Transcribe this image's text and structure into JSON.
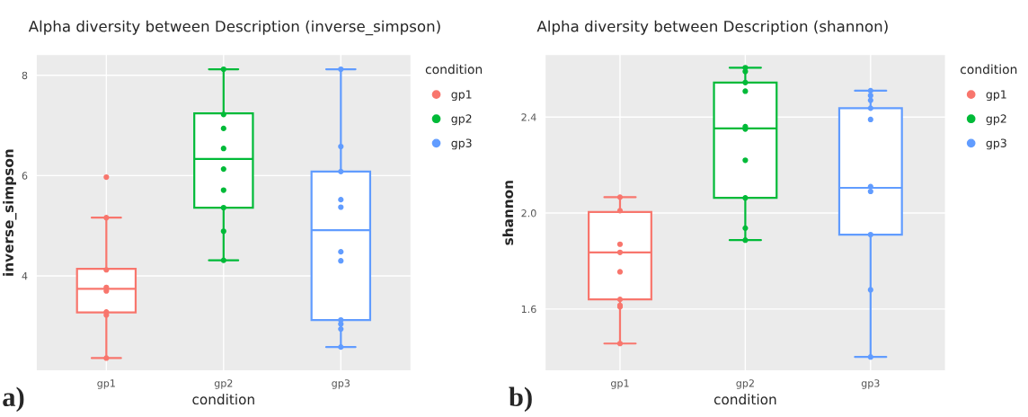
{
  "chart_data": [
    {
      "type": "box",
      "title": "Alpha diversity between Description (inverse_simpson)",
      "xlabel": "condition",
      "ylabel": "inverse_simpson",
      "legend_title": "condition",
      "annotations": [
        "a)"
      ],
      "categories": [
        "gp1",
        "gp2",
        "gp3"
      ],
      "colors": [
        "#f8766d",
        "#00ba38",
        "#619cff"
      ],
      "boxes": [
        {
          "low": 2.36,
          "q1": 3.27,
          "median": 3.74,
          "q3": 4.14,
          "high": 5.16
        },
        {
          "low": 4.31,
          "q1": 5.36,
          "median": 6.33,
          "q3": 7.24,
          "high": 8.12
        },
        {
          "low": 2.58,
          "q1": 3.12,
          "median": 4.91,
          "q3": 6.08,
          "high": 8.12
        }
      ],
      "series": [
        {
          "type": "scatter",
          "name": "gp1",
          "color": "#f8766d",
          "x": [
            "gp1",
            "gp1",
            "gp1",
            "gp1",
            "gp1",
            "gp1",
            "gp1",
            "gp1"
          ],
          "values": [
            2.36,
            3.28,
            3.22,
            3.77,
            3.7,
            4.12,
            5.16,
            5.97
          ]
        },
        {
          "type": "scatter",
          "name": "gp2",
          "color": "#00ba38",
          "x": [
            "gp2",
            "gp2",
            "gp2",
            "gp2",
            "gp2",
            "gp2",
            "gp2",
            "gp2",
            "gp2"
          ],
          "values": [
            4.31,
            4.89,
            5.36,
            5.71,
            6.13,
            6.54,
            6.94,
            7.22,
            8.12
          ]
        },
        {
          "type": "scatter",
          "name": "gp3",
          "color": "#619cff",
          "x": [
            "gp3",
            "gp3",
            "gp3",
            "gp3",
            "gp3",
            "gp3",
            "gp3",
            "gp3",
            "gp3",
            "gp3",
            "gp3"
          ],
          "values": [
            2.58,
            2.94,
            3.04,
            3.12,
            4.3,
            4.48,
            5.37,
            5.52,
            6.08,
            6.58,
            8.12
          ]
        }
      ],
      "ylim": [
        2.1,
        8.42
      ],
      "yticks": [
        4,
        6,
        8
      ],
      "grid": true,
      "legend": "right",
      "marker": "circle"
    },
    {
      "type": "box",
      "title": "Alpha diversity between Description (shannon)",
      "xlabel": "condition",
      "ylabel": "shannon",
      "legend_title": "condition",
      "annotations": [
        "b)"
      ],
      "categories": [
        "gp1",
        "gp2",
        "gp3"
      ],
      "colors": [
        "#f8766d",
        "#00ba38",
        "#619cff"
      ],
      "boxes": [
        {
          "low": 1.456,
          "q1": 1.64,
          "median": 1.836,
          "q3": 2.004,
          "high": 2.066
        },
        {
          "low": 1.887,
          "q1": 2.063,
          "median": 2.353,
          "q3": 2.544,
          "high": 2.606
        },
        {
          "low": 1.4,
          "q1": 1.91,
          "median": 2.105,
          "q3": 2.437,
          "high": 2.51
        }
      ],
      "series": [
        {
          "type": "scatter",
          "name": "gp1",
          "color": "#f8766d",
          "x": [
            "gp1",
            "gp1",
            "gp1",
            "gp1",
            "gp1",
            "gp1",
            "gp1",
            "gp1",
            "gp1"
          ],
          "values": [
            1.456,
            1.609,
            1.615,
            1.64,
            1.755,
            1.836,
            1.87,
            2.01,
            2.066
          ]
        },
        {
          "type": "scatter",
          "name": "gp2",
          "color": "#00ba38",
          "x": [
            "gp2",
            "gp2",
            "gp2",
            "gp2",
            "gp2",
            "gp2",
            "gp2",
            "gp2",
            "gp2",
            "gp2"
          ],
          "values": [
            1.887,
            1.937,
            2.063,
            2.22,
            2.35,
            2.36,
            2.508,
            2.544,
            2.59,
            2.606
          ]
        },
        {
          "type": "scatter",
          "name": "gp3",
          "color": "#619cff",
          "x": [
            "gp3",
            "gp3",
            "gp3",
            "gp3",
            "gp3",
            "gp3",
            "gp3",
            "gp3",
            "gp3",
            "gp3"
          ],
          "values": [
            1.4,
            1.68,
            1.91,
            2.09,
            2.11,
            2.39,
            2.437,
            2.47,
            2.49,
            2.51
          ]
        }
      ],
      "ylim": [
        1.341,
        2.662
      ],
      "yticks": [
        {
          "value": 1.6,
          "label": "1.6"
        },
        {
          "value": 2.0,
          "label": "2.0"
        },
        {
          "value": 2.4,
          "label": "2.4"
        }
      ],
      "grid": true,
      "legend": "right",
      "marker": "circle"
    }
  ]
}
